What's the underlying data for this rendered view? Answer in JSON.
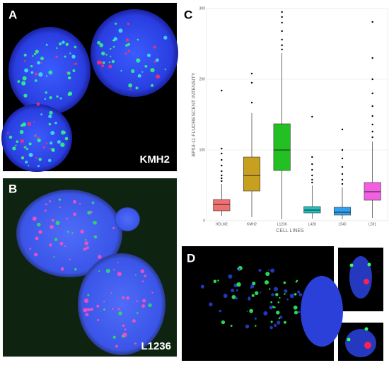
{
  "panels": {
    "a": {
      "letter": "A",
      "label": "KMH2"
    },
    "b": {
      "letter": "B",
      "label": "L1236"
    },
    "c": {
      "letter": "C"
    },
    "d": {
      "letter": "D"
    }
  },
  "chart_data": {
    "type": "box",
    "y_label": "BP53-11 FLUORESCENT INTENSITY",
    "x_label": "CELL LINES",
    "ylim": [
      0,
      300
    ],
    "yticks": [
      0,
      100,
      200,
      300
    ],
    "grid": true,
    "categories": [
      "HDLM2",
      "KMH2",
      "L1236",
      "L428",
      "L540",
      "L591"
    ],
    "boxes": [
      {
        "color": "#f07070",
        "min": 7,
        "q1": 14,
        "median": 23,
        "q3": 30,
        "max": 52,
        "outliers": [
          56,
          60,
          64,
          70,
          78,
          86,
          95,
          102,
          184
        ]
      },
      {
        "color": "#c8a020",
        "min": 5,
        "q1": 42,
        "median": 64,
        "q3": 90,
        "max": 152,
        "outliers": [
          167,
          195,
          208
        ]
      },
      {
        "color": "#22c022",
        "min": 2,
        "q1": 71,
        "median": 100,
        "q3": 137,
        "max": 237,
        "outliers": [
          242,
          248,
          256,
          268,
          280,
          288,
          295
        ]
      },
      {
        "color": "#20c0c0",
        "min": 3,
        "q1": 11,
        "median": 15,
        "q3": 20,
        "max": 50,
        "outliers": [
          54,
          58,
          64,
          72,
          80,
          90,
          147
        ]
      },
      {
        "color": "#30a0f0",
        "min": 2,
        "q1": 8,
        "median": 12,
        "q3": 19,
        "max": 47,
        "outliers": [
          52,
          58,
          66,
          76,
          88,
          100,
          129
        ]
      },
      {
        "color": "#f060e0",
        "min": 4,
        "q1": 29,
        "median": 41,
        "q3": 54,
        "max": 112,
        "outliers": [
          118,
          126,
          136,
          148,
          162,
          180,
          200,
          230,
          281
        ]
      }
    ]
  }
}
